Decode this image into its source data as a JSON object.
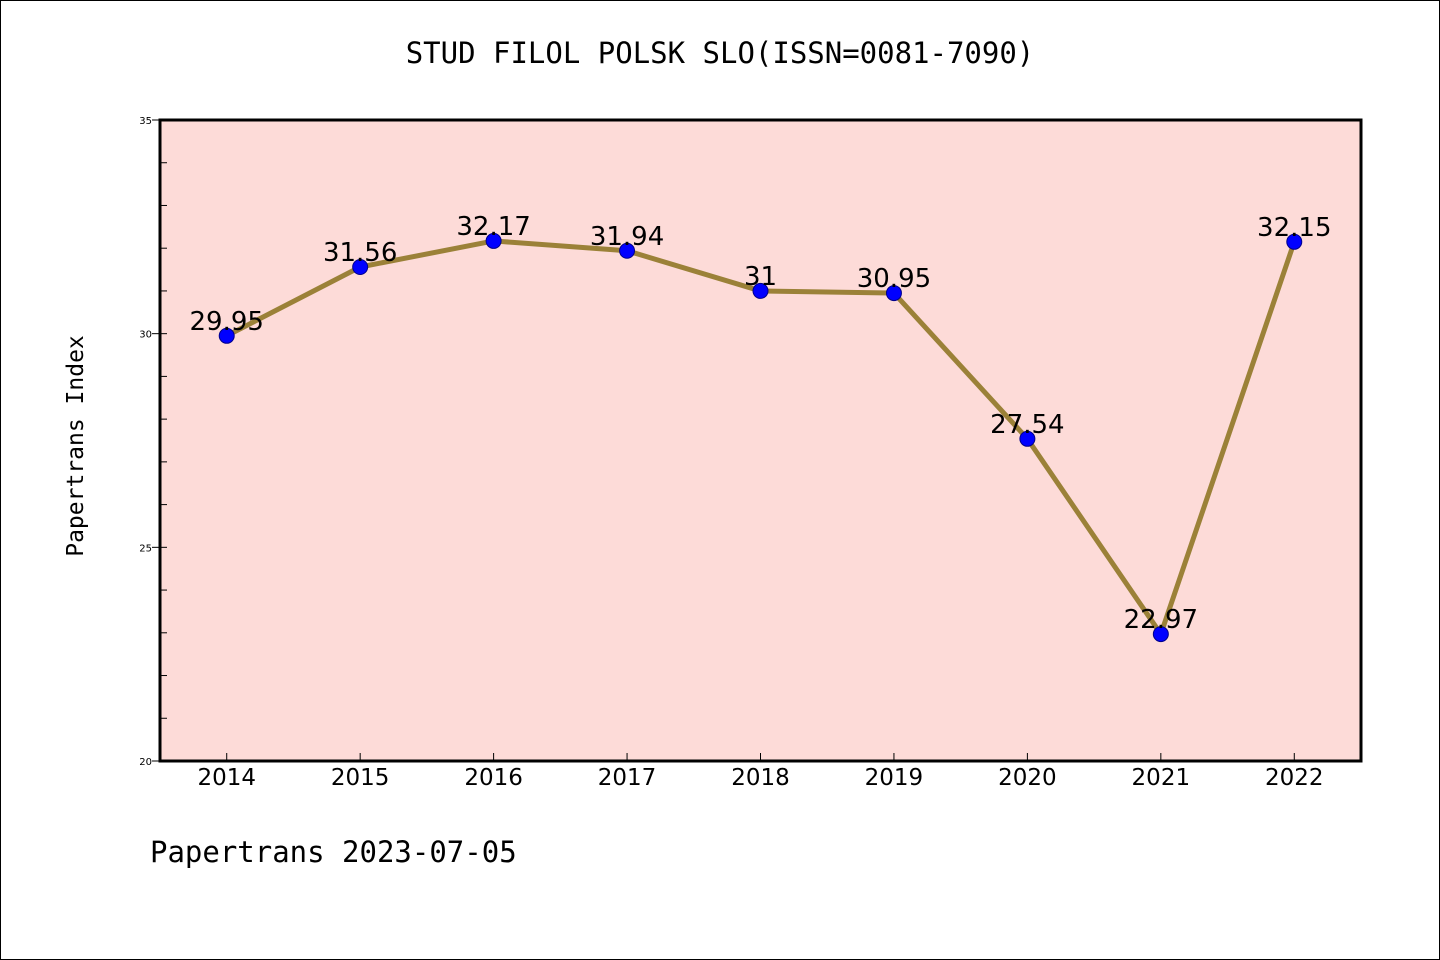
{
  "chart_data": {
    "type": "line",
    "title": "STUD FILOL POLSK SLO(ISSN=0081-7090)",
    "xlabel": "",
    "ylabel": "Papertrans Index",
    "categories": [
      "2014",
      "2015",
      "2016",
      "2017",
      "2018",
      "2019",
      "2020",
      "2021",
      "2022"
    ],
    "series": [
      {
        "values": [
          29.95,
          31.56,
          32.17,
          31.94,
          31,
          30.95,
          27.54,
          22.97,
          32.15
        ]
      }
    ],
    "data_labels": [
      "29.95",
      "31.56",
      "32.17",
      "31.94",
      "31",
      "30.95",
      "27.54",
      "22.97",
      "32.15"
    ],
    "ylim": [
      20,
      35
    ],
    "yticks": [
      20,
      25,
      30,
      35
    ],
    "grid": false,
    "legend": "none",
    "colors": {
      "plot_background": "#fddbd8",
      "line": "#9b8138",
      "marker": "#0000ff",
      "marker_edge": "#00008b"
    }
  },
  "footer": {
    "text": "Papertrans 2023-07-05"
  }
}
